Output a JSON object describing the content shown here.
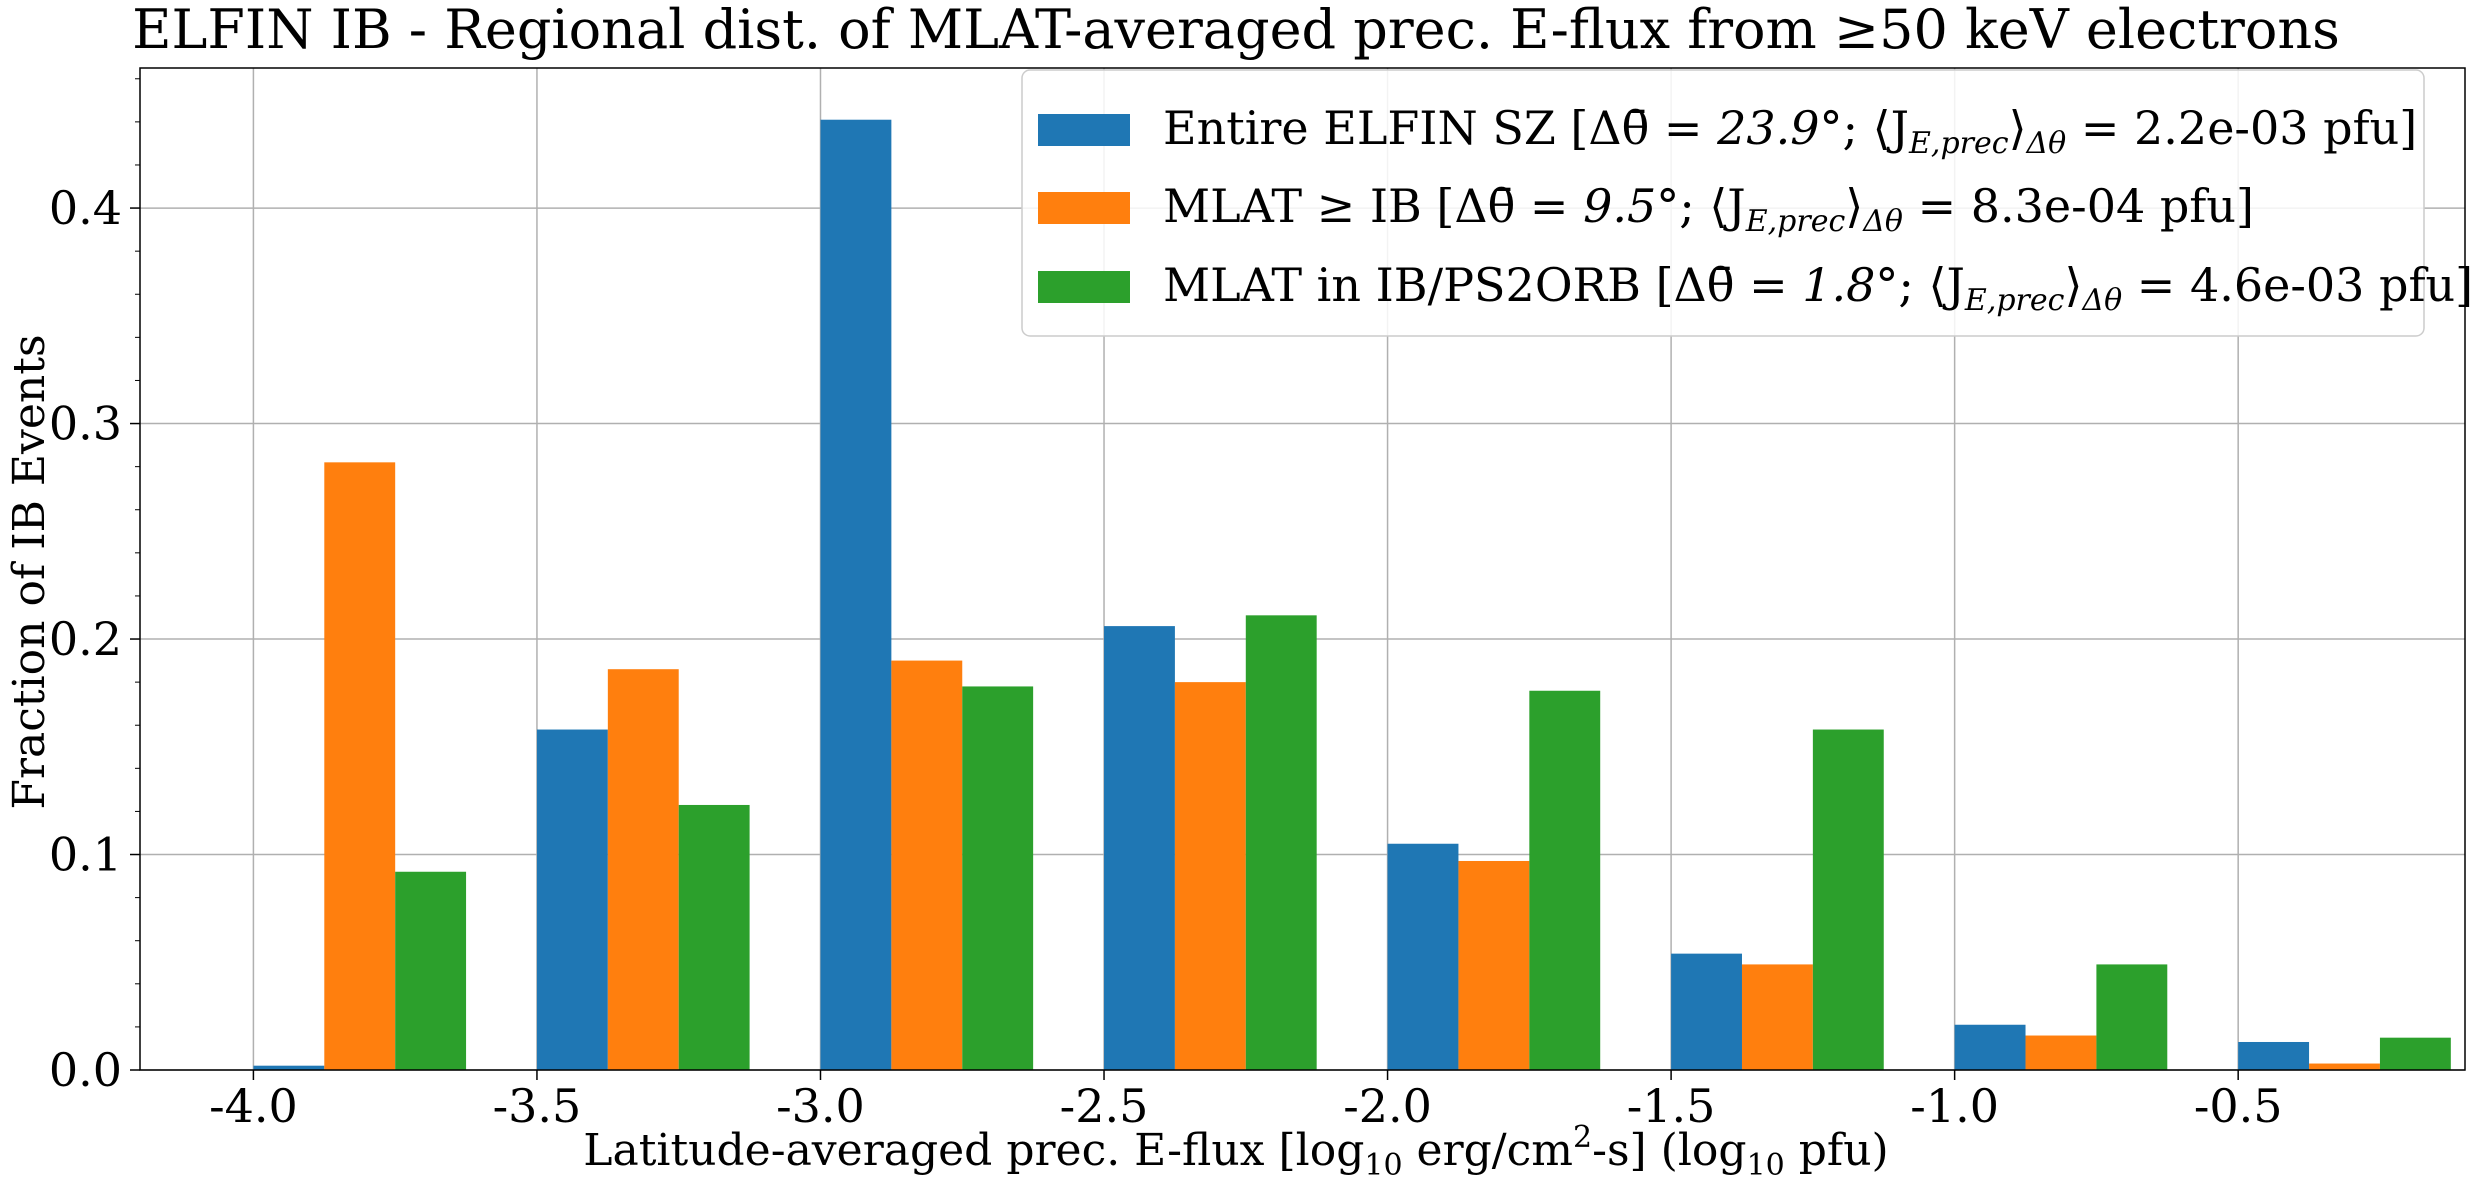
{
  "chart_data": {
    "type": "bar",
    "title": "ELFIN IB - Regional dist. of MLAT-averaged prec. E-flux from ≥50 keV electrons",
    "xlabel": {
      "prefix": "Latitude-averaged prec. E-flux [",
      "log": "log",
      "log_sub": "10",
      "unit_a": " erg/cm",
      "unit_sup": "2",
      "unit_b": "-s] (",
      "log2": "log",
      "log2_sub": "10",
      "suffix": " pfu)"
    },
    "ylabel": "Fraction of IB Events",
    "xlim": [
      -4.2,
      -0.1
    ],
    "ylim": [
      0.0,
      0.465
    ],
    "x_ticks": [
      -4.0,
      -3.5,
      -3.0,
      -2.5,
      -2.0,
      -1.5,
      -1.0,
      -0.5
    ],
    "x_tick_labels": [
      "-4.0",
      "-3.5",
      "-3.0",
      "-2.5",
      "-2.0",
      "-1.5",
      "-1.0",
      "-0.5"
    ],
    "y_ticks": [
      0.0,
      0.1,
      0.2,
      0.3,
      0.4
    ],
    "y_tick_labels": [
      "0.0",
      "0.1",
      "0.2",
      "0.3",
      "0.4"
    ],
    "bin_edges": [
      -4.0,
      -3.5,
      -3.0,
      -2.5,
      -2.0,
      -1.5,
      -1.0,
      -0.5,
      0.0
    ],
    "bar_width": 0.125,
    "grid": true,
    "legend_position": "top-right",
    "series": [
      {
        "name": "Entire ELFIN SZ",
        "color": "#1f77b4",
        "legend": {
          "prefix": "Entire ELFIN SZ [Δθ̄ = ",
          "angle": "23.9°",
          "mid": "; ⟨J",
          "sub": "E,prec",
          "close": "⟩",
          "sub2": "Δθ",
          "suffix": " = 2.2e-03 pfu]"
        },
        "values": [
          0.002,
          0.158,
          0.441,
          0.206,
          0.105,
          0.054,
          0.021,
          0.013
        ]
      },
      {
        "name": "MLAT ≥ IB",
        "color": "#ff7f0e",
        "legend": {
          "prefix": "MLAT ≥ IB [Δθ̄ = ",
          "angle": "9.5°",
          "mid": "; ⟨J",
          "sub": "E,prec",
          "close": "⟩",
          "sub2": "Δθ",
          "suffix": " = 8.3e-04 pfu]"
        },
        "values": [
          0.282,
          0.186,
          0.19,
          0.18,
          0.097,
          0.049,
          0.016,
          0.003
        ]
      },
      {
        "name": "MLAT in IB/PS2ORB",
        "color": "#2ca02c",
        "legend": {
          "prefix": "MLAT in IB/PS2ORB [Δθ̄ = ",
          "angle": "1.8°",
          "mid": "; ⟨J",
          "sub": "E,prec",
          "close": "⟩",
          "sub2": "Δθ",
          "suffix": " = 4.6e-03 pfu]"
        },
        "values": [
          0.092,
          0.123,
          0.178,
          0.211,
          0.176,
          0.158,
          0.049,
          0.015
        ]
      }
    ]
  }
}
